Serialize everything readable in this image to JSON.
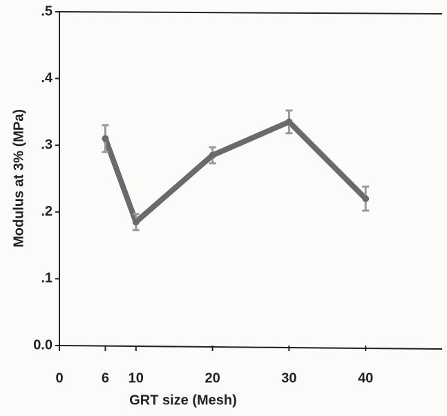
{
  "chart_data": {
    "type": "line",
    "xlabel": "GRT size (Mesh)",
    "ylabel": "Modulus at 3% (MPa)",
    "x": [
      6,
      10,
      20,
      30,
      40
    ],
    "series": [
      {
        "color": "#6a6a6a",
        "values": [
          0.31,
          0.185,
          0.285,
          0.335,
          0.22
        ],
        "errors": [
          0.02,
          0.012,
          0.012,
          0.017,
          0.018
        ]
      }
    ],
    "xlim": [
      0,
      50
    ],
    "ylim": [
      0,
      0.5
    ],
    "xticks": [
      0,
      6,
      10,
      20,
      30,
      40
    ],
    "yticks": [
      {
        "value": 0,
        "label": "0.0"
      },
      {
        "value": 0.1,
        "label": ".1"
      },
      {
        "value": 0.2,
        "label": ".2"
      },
      {
        "value": 0.3,
        "label": ".3"
      },
      {
        "value": 0.4,
        "label": ".4"
      },
      {
        "value": 0.5,
        "label": ".5"
      }
    ],
    "grid": false
  }
}
